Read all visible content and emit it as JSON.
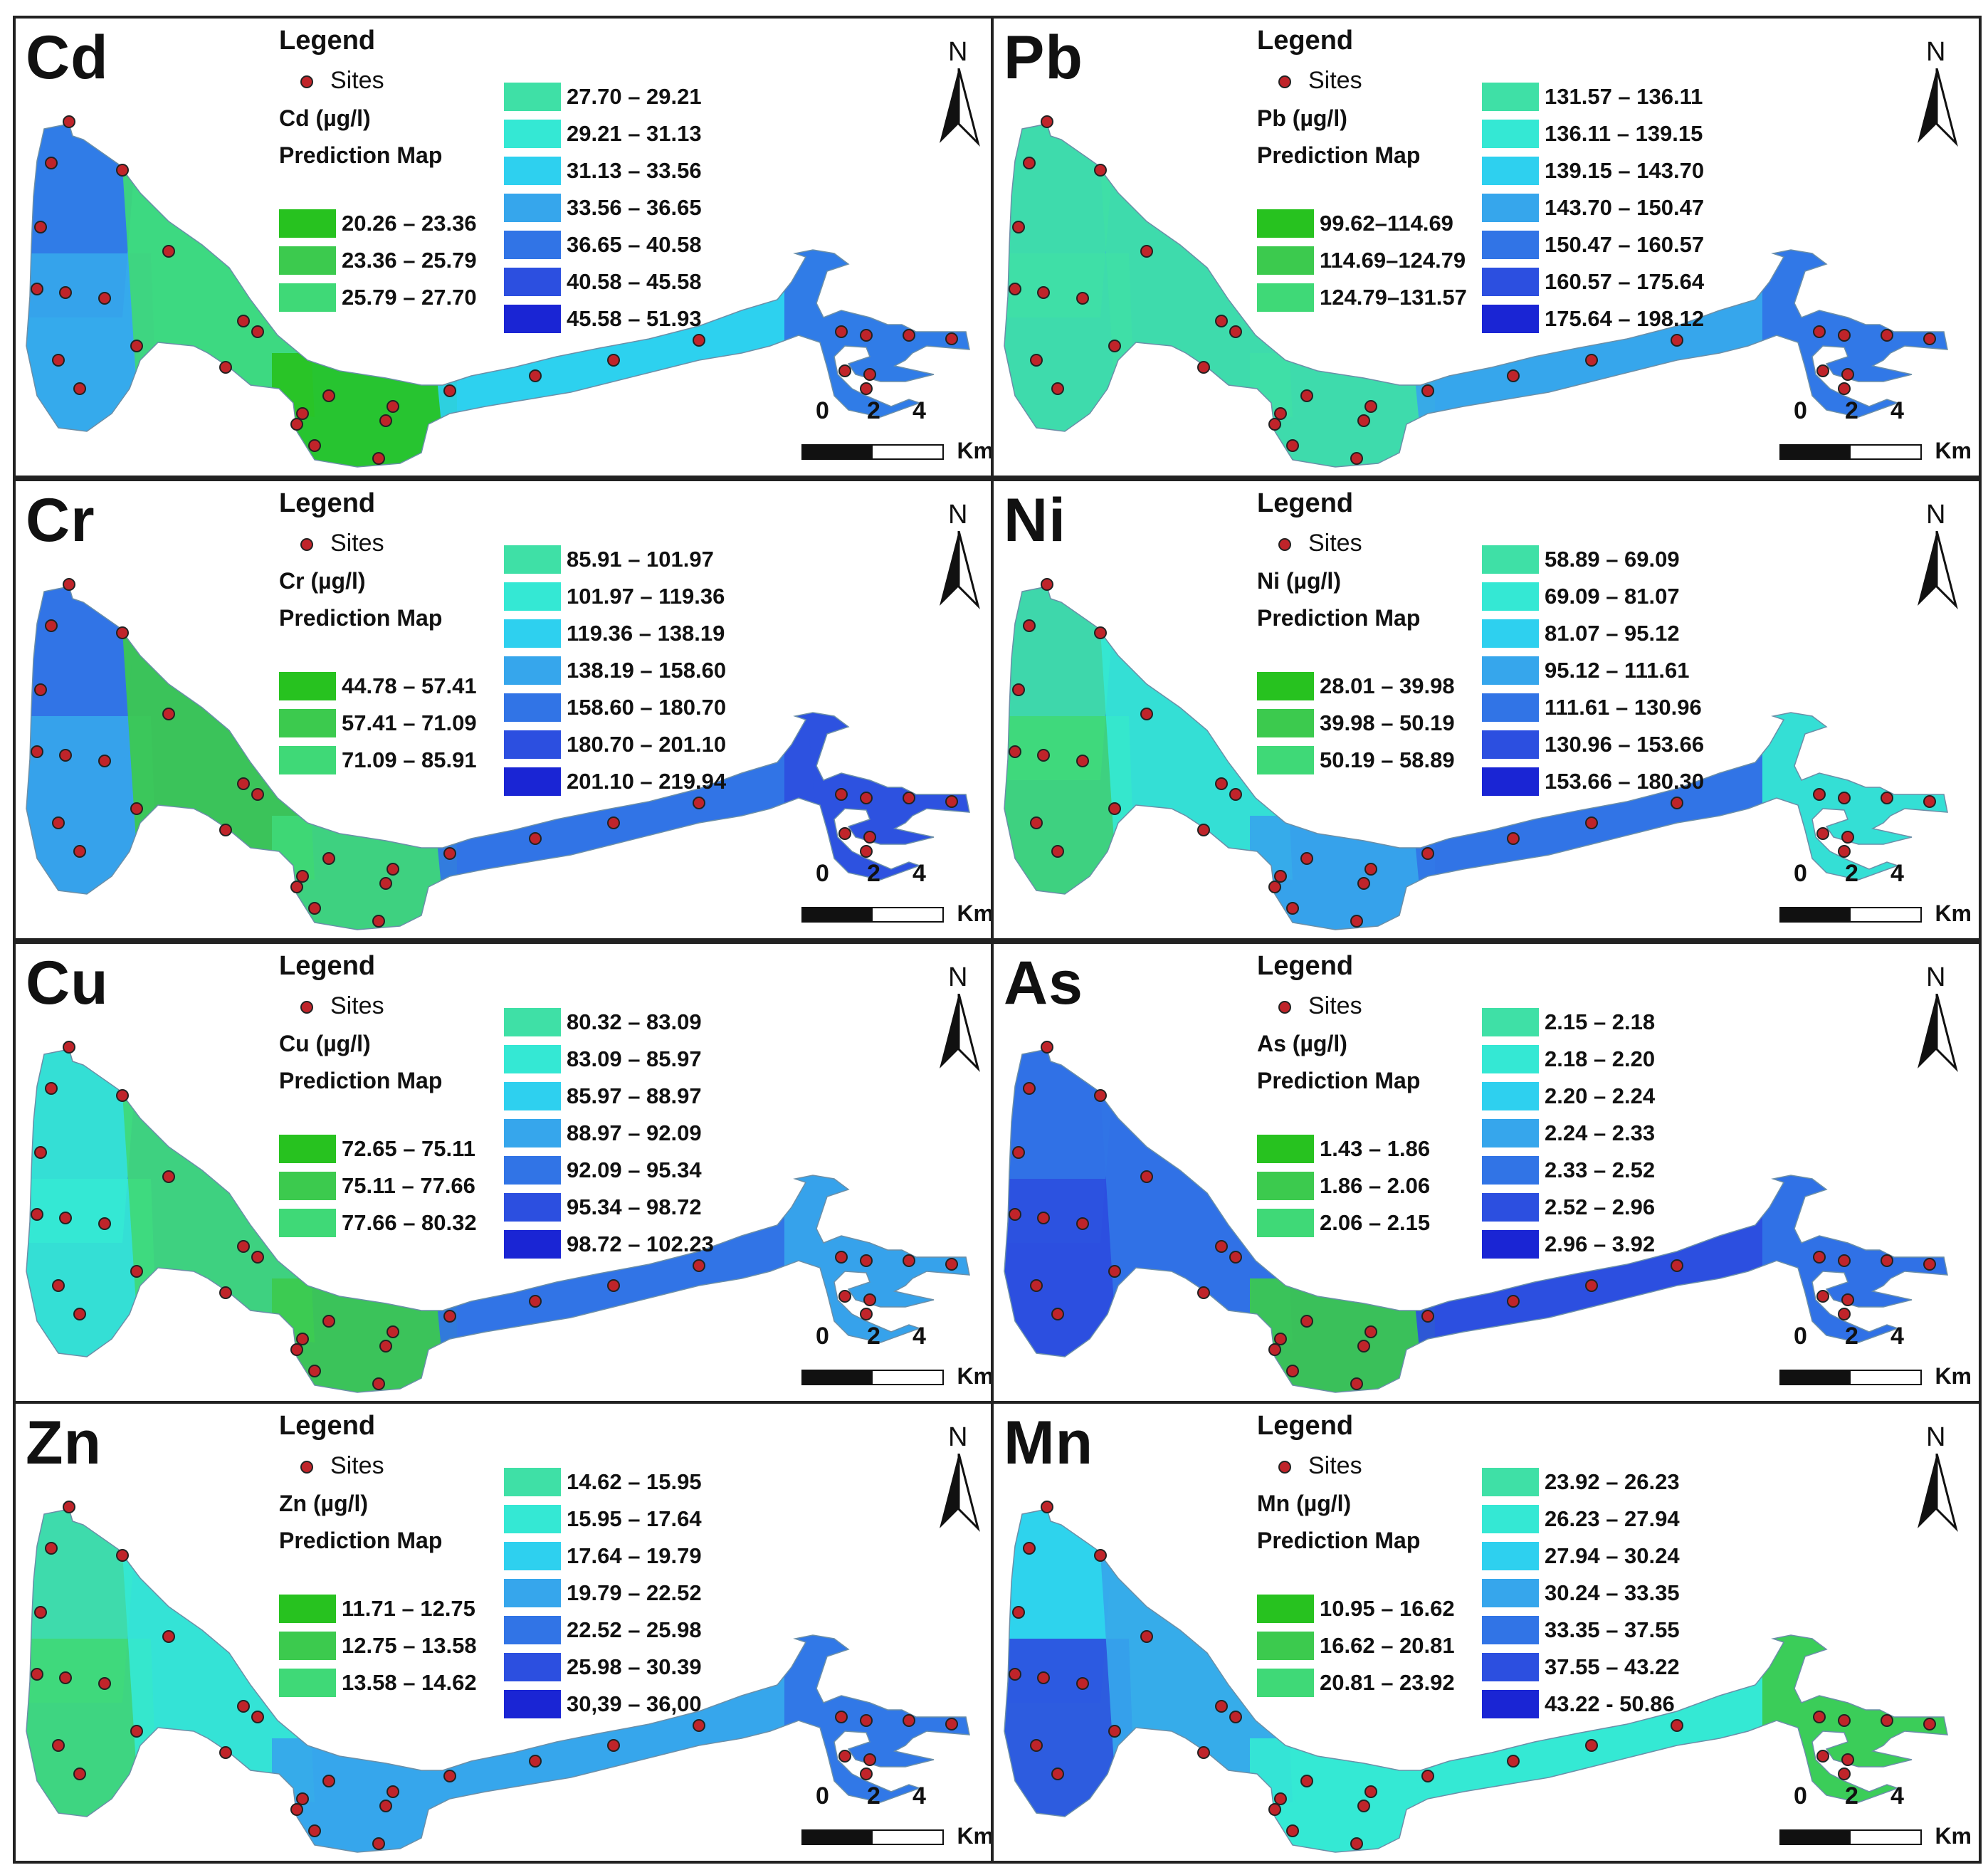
{
  "legend_heading": "Legend",
  "sites_label": "Sites",
  "prediction_label": "Prediction Map",
  "north_label": "N",
  "scale": {
    "labels": [
      "0",
      "2",
      "4"
    ],
    "unit": "Km"
  },
  "site_color": "#c0242a",
  "class_colors": [
    "#27c21f",
    "#3cca4e",
    "#3fd977",
    "#3fe0a6",
    "#34e8d4",
    "#2ed0ef",
    "#36a6ec",
    "#3174e6",
    "#2c4fe0",
    "#1a25d4"
  ],
  "panels": [
    {
      "id": "cd",
      "element": "Cd",
      "unit_label": "Cd (µg/l)",
      "classes": [
        "20.26 – 23.36",
        "23.36 – 25.79",
        "25.79 – 27.70",
        "27.70 – 29.21",
        "29.21 – 31.13",
        "31.13 – 33.56",
        "33.56 – 36.65",
        "36.65 – 40.58",
        "40.58 – 45.58",
        "45.58 – 51.93"
      ],
      "zones": {
        "nw": 7,
        "west": 6,
        "middle": 2,
        "south": 0,
        "channel": 5,
        "east": 7
      }
    },
    {
      "id": "pb",
      "element": "Pb",
      "unit_label": "Pb (µg/l)",
      "classes": [
        "99.62–114.69",
        "114.69–124.79",
        "124.79–131.57",
        "131.57 – 136.11",
        "136.11 – 139.15",
        "139.15 – 143.70",
        "143.70 – 150.47",
        "150.47 – 160.57",
        "160.57 – 175.64",
        "175.64 – 198.12"
      ],
      "zones": {
        "nw": 3,
        "west": 3,
        "middle": 3,
        "south": 3,
        "channel": 6,
        "east": 7
      }
    },
    {
      "id": "cr",
      "element": "Cr",
      "unit_label": "Cr (µg/l)",
      "classes": [
        "44.78 – 57.41",
        "57.41 – 71.09",
        "71.09 – 85.91",
        "85.91 – 101.97",
        "101.97 – 119.36",
        "119.36 – 138.19",
        "138.19 – 158.60",
        "158.60 – 180.70",
        "180.70 – 201.10",
        "201.10 – 219.94"
      ],
      "zones": {
        "nw": 7,
        "west": 6,
        "middle": 1,
        "south": 2,
        "channel": 7,
        "east": 8
      }
    },
    {
      "id": "ni",
      "element": "Ni",
      "unit_label": "Ni (µg/l)",
      "classes": [
        "28.01 – 39.98",
        "39.98 – 50.19",
        "50.19 – 58.89",
        "58.89 – 69.09",
        "69.09 – 81.07",
        "81.07 – 95.12",
        "95.12 – 111.61",
        "111.61 – 130.96",
        "130.96 – 153.66",
        "153.66 – 180.30"
      ],
      "zones": {
        "nw": 3,
        "west": 2,
        "middle": 4,
        "south": 6,
        "channel": 7,
        "east": 4
      }
    },
    {
      "id": "cu",
      "element": "Cu",
      "unit_label": "Cu (µg/l)",
      "classes": [
        "72.65 – 75.11",
        "75.11 – 77.66",
        "77.66 – 80.32",
        "80.32 – 83.09",
        "83.09 – 85.97",
        "85.97 – 88.97",
        "88.97 – 92.09",
        "92.09 – 95.34",
        "95.34 – 98.72",
        "98.72 – 102.23"
      ],
      "zones": {
        "nw": 4,
        "west": 4,
        "middle": 2,
        "south": 1,
        "channel": 7,
        "east": 6
      }
    },
    {
      "id": "as",
      "element": "As",
      "unit_label": "As (µg/l)",
      "classes": [
        "1.43 – 1.86",
        "1.86 – 2.06",
        "2.06 – 2.15",
        "2.15 – 2.18",
        "2.18 – 2.20",
        "2.20 – 2.24",
        "2.24 – 2.33",
        "2.33 – 2.52",
        "2.52 – 2.96",
        "2.96 – 3.92"
      ],
      "zones": {
        "nw": 7,
        "west": 8,
        "middle": 7,
        "south": 1,
        "channel": 8,
        "east": 7
      }
    },
    {
      "id": "zn",
      "element": "Zn",
      "unit_label": "Zn (µg/l)",
      "classes": [
        "11.71 – 12.75",
        "12.75 – 13.58",
        "13.58 – 14.62",
        "14.62 – 15.95",
        "15.95 – 17.64",
        "17.64 – 19.79",
        "19.79 – 22.52",
        "22.52 – 25.98",
        "25.98 – 30.39",
        "30,39 – 36,00"
      ],
      "zones": {
        "nw": 3,
        "west": 2,
        "middle": 4,
        "south": 6,
        "channel": 6,
        "east": 7
      }
    },
    {
      "id": "mn",
      "element": "Mn",
      "unit_label": "Mn (µg/l)",
      "classes": [
        "10.95 – 16.62",
        "16.62 – 20.81",
        "20.81 – 23.92",
        "23.92 – 26.23",
        "26.23 – 27.94",
        "27.94 – 30.24",
        "30.24 – 33.35",
        "33.35 – 37.55",
        "37.55 – 43.22",
        "43.22 - 50.86"
      ],
      "zones": {
        "nw": 5,
        "west": 8,
        "middle": 6,
        "south": 4,
        "channel": 4,
        "east": 1
      }
    }
  ]
}
